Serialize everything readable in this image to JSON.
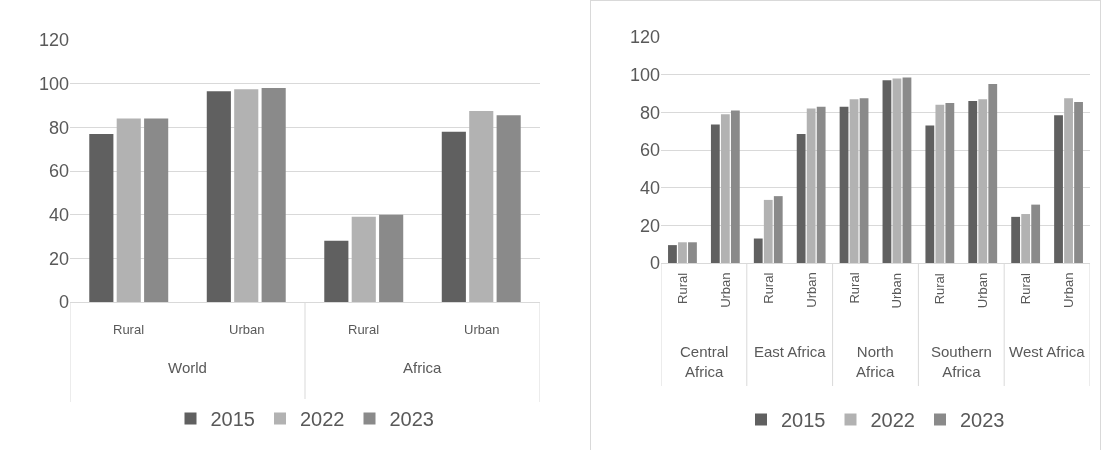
{
  "chart_data": [
    {
      "type": "bar",
      "categories": [
        "Rural",
        "Urban",
        "Rural",
        "Urban"
      ],
      "series": [
        {
          "name": "2015",
          "color": "#606060",
          "values": [
            77,
            96.5,
            28,
            78
          ]
        },
        {
          "name": "2022",
          "color": "#b2b2b2",
          "values": [
            84,
            97.5,
            39,
            87.5
          ]
        },
        {
          "name": "2023",
          "color": "#8a8a8a",
          "values": [
            84,
            98,
            40,
            85.5
          ]
        }
      ],
      "annotations": [
        "World",
        "Africa"
      ],
      "ylim": [
        0,
        120
      ],
      "yticks": [
        0,
        20,
        40,
        60,
        80,
        100,
        120
      ],
      "grid": "y",
      "legend": "bottom"
    },
    {
      "type": "bar",
      "categories": [
        "Rural",
        "Urban",
        "Rural",
        "Urban",
        "Rural",
        "Urban",
        "Rural",
        "Urban",
        "Rural",
        "Urban"
      ],
      "series": [
        {
          "name": "2015",
          "color": "#606060",
          "values": [
            9.5,
            73.5,
            13,
            68.5,
            83,
            97,
            73,
            86,
            24.5,
            78.5
          ]
        },
        {
          "name": "2022",
          "color": "#b2b2b2",
          "values": [
            11,
            79,
            33.5,
            82,
            87,
            98,
            84,
            87,
            26,
            87.5
          ]
        },
        {
          "name": "2023",
          "color": "#8a8a8a",
          "values": [
            11,
            81,
            35.5,
            83,
            87.5,
            98.5,
            85,
            95,
            31,
            85.5
          ]
        }
      ],
      "annotations": [
        "Central Africa",
        "East Africa",
        "North Africa",
        "Southern Africa",
        "West Africa"
      ],
      "ylim": [
        0,
        120
      ],
      "yticks": [
        0,
        20,
        40,
        60,
        80,
        100,
        120
      ],
      "grid": "y",
      "legend": "bottom"
    }
  ]
}
